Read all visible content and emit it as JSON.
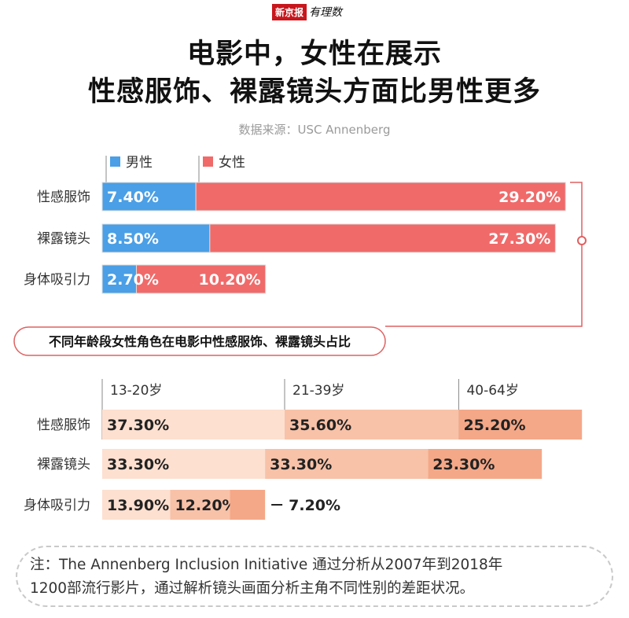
{
  "header": {
    "logo_box": "新京报",
    "logo_hand": "有理数",
    "title_line1": "电影中，女性在展示",
    "title_line2": "性感服饰、裸露镜头方面比男性更多",
    "source": "数据来源：USC Annenberg"
  },
  "colors": {
    "male": "#4a9fe6",
    "female": "#f06a6a",
    "age_13_20": "#fde0d0",
    "age_21_39": "#f8c2a8",
    "age_40_64": "#f4a888",
    "accent_line": "#e06060"
  },
  "section2_title": "不同年龄段女性角色在电影中性感服饰、裸露镜头占比",
  "note": {
    "line1": "注：The Annenberg Inclusion Initiative 通过分析从2007年到2018年",
    "line2": "1200部流行影片，通过解析镜头画面分析主角不同性别的差距状况。"
  },
  "chart_data": [
    {
      "type": "bar",
      "stacked": true,
      "orientation": "horizontal",
      "categories": [
        "性感服饰",
        "裸露镜头",
        "身体吸引力"
      ],
      "series": [
        {
          "name": "男性",
          "values": [
            7.4,
            8.5,
            2.7
          ],
          "labels": [
            "7.40%",
            "8.50%",
            "2.70%"
          ]
        },
        {
          "name": "女性",
          "values": [
            29.2,
            27.3,
            10.2
          ],
          "labels": [
            "29.20%",
            "27.30%",
            "10.20%"
          ]
        }
      ],
      "legend": "top"
    },
    {
      "type": "bar",
      "stacked": true,
      "orientation": "horizontal",
      "categories": [
        "性感服饰",
        "裸露镜头",
        "身体吸引力"
      ],
      "series": [
        {
          "name": "13-20岁",
          "values": [
            37.3,
            33.3,
            13.9
          ],
          "labels": [
            "37.30%",
            "33.30%",
            "13.90%"
          ]
        },
        {
          "name": "21-39岁",
          "values": [
            35.6,
            33.3,
            12.2
          ],
          "labels": [
            "35.60%",
            "33.30%",
            "12.20%"
          ]
        },
        {
          "name": "40-64岁",
          "values": [
            25.2,
            23.3,
            7.2
          ],
          "labels": [
            "25.20%",
            "23.30%",
            "7.20%"
          ]
        }
      ],
      "legend": "top"
    }
  ]
}
